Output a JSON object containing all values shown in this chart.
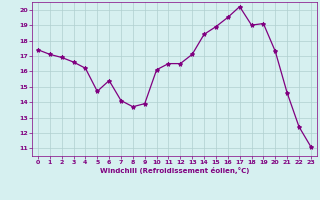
{
  "x": [
    0,
    1,
    2,
    3,
    4,
    5,
    6,
    7,
    8,
    9,
    10,
    11,
    12,
    13,
    14,
    15,
    16,
    17,
    18,
    19,
    20,
    21,
    22,
    23
  ],
  "y": [
    17.4,
    17.1,
    16.9,
    16.6,
    16.2,
    14.7,
    15.4,
    14.1,
    13.7,
    13.9,
    16.1,
    16.5,
    16.5,
    17.1,
    18.4,
    18.9,
    19.5,
    20.2,
    19.0,
    19.1,
    17.3,
    14.6,
    12.4,
    11.1
  ],
  "line_color": "#800080",
  "marker": "*",
  "marker_size": 3,
  "bg_color": "#d6f0f0",
  "grid_color": "#b0d0d0",
  "xlabel": "Windchill (Refroidissement éolien,°C)",
  "xlabel_color": "#800080",
  "tick_color": "#800080",
  "ylim": [
    10.5,
    20.5
  ],
  "yticks": [
    11,
    12,
    13,
    14,
    15,
    16,
    17,
    18,
    19,
    20
  ],
  "xlim": [
    -0.5,
    23.5
  ],
  "xticks": [
    0,
    1,
    2,
    3,
    4,
    5,
    6,
    7,
    8,
    9,
    10,
    11,
    12,
    13,
    14,
    15,
    16,
    17,
    18,
    19,
    20,
    21,
    22,
    23
  ]
}
